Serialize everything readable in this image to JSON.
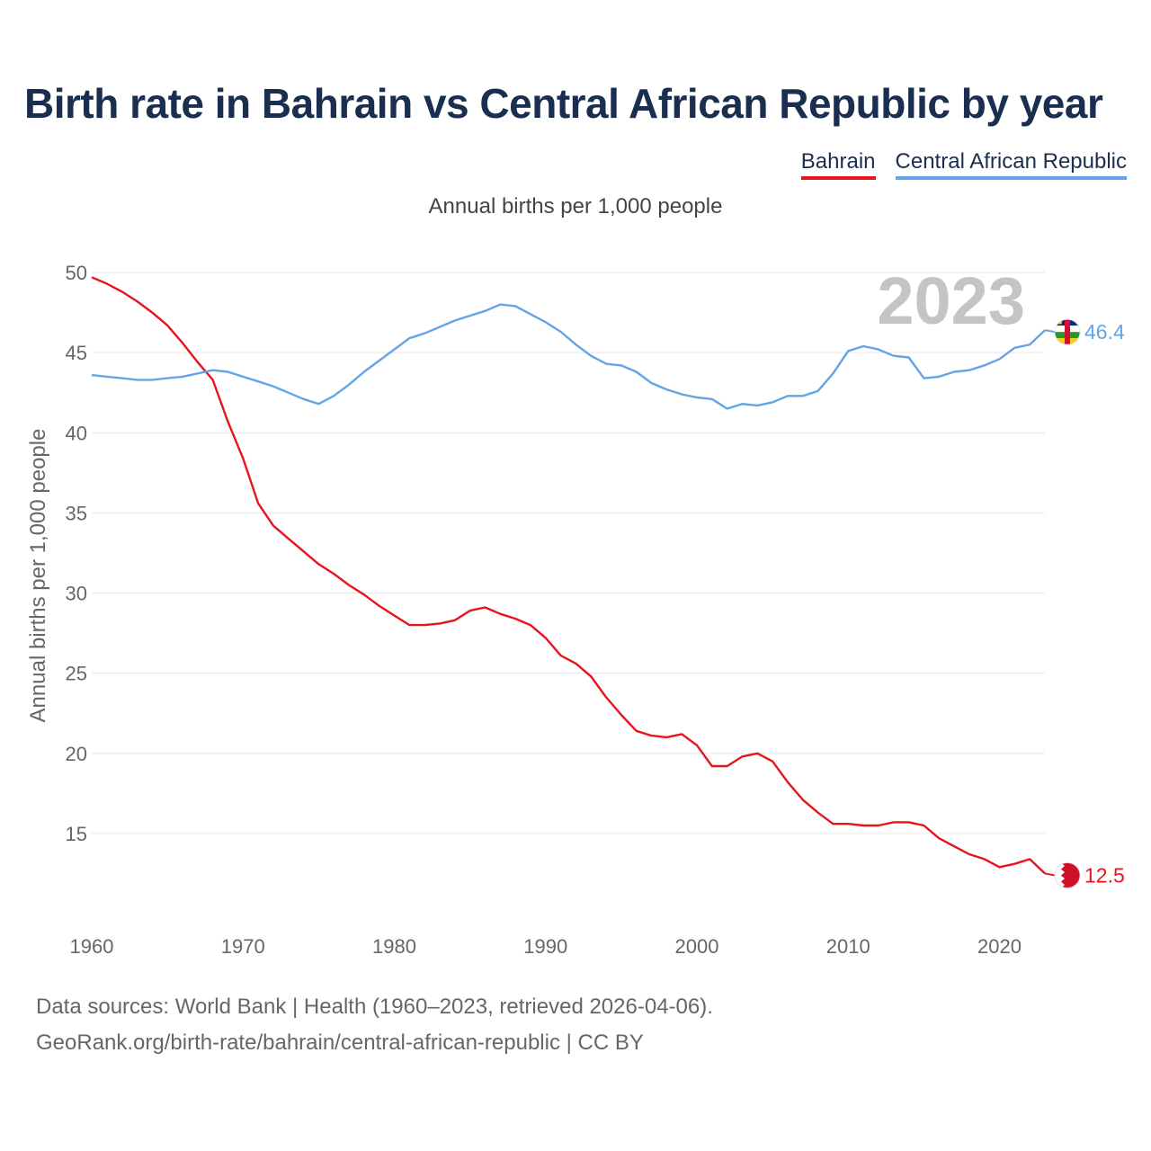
{
  "title": "Birth rate in Bahrain vs Central African Republic by year",
  "legend": [
    {
      "name": "Bahrain",
      "color": "#e8141c"
    },
    {
      "name": "Central African Republic",
      "color": "#62a5e4"
    }
  ],
  "chart_data": {
    "type": "line",
    "title": "Birth rate in Bahrain vs Central African Republic by year",
    "subtitle": "Annual births per 1,000 people",
    "xlabel": "",
    "ylabel": "Annual births per 1,000 people",
    "xlim": [
      1960,
      2023
    ],
    "ylim": [
      10,
      50
    ],
    "yticks": [
      15,
      20,
      25,
      30,
      35,
      40,
      45,
      50
    ],
    "xticks": [
      1960,
      1970,
      1980,
      1990,
      2000,
      2010,
      2020
    ],
    "grid": true,
    "current_year": "2023",
    "x": [
      1960,
      1961,
      1962,
      1963,
      1964,
      1965,
      1966,
      1967,
      1968,
      1969,
      1970,
      1971,
      1972,
      1973,
      1974,
      1975,
      1976,
      1977,
      1978,
      1979,
      1980,
      1981,
      1982,
      1983,
      1984,
      1985,
      1986,
      1987,
      1988,
      1989,
      1990,
      1991,
      1992,
      1993,
      1994,
      1995,
      1996,
      1997,
      1998,
      1999,
      2000,
      2001,
      2002,
      2003,
      2004,
      2005,
      2006,
      2007,
      2008,
      2009,
      2010,
      2011,
      2012,
      2013,
      2014,
      2015,
      2016,
      2017,
      2018,
      2019,
      2020,
      2021,
      2022,
      2023
    ],
    "series": [
      {
        "name": "Bahrain",
        "color": "#e8141c",
        "end_label": "12.5",
        "flag": "bahrain-flag-icon",
        "values": [
          49.7,
          49.3,
          48.8,
          48.2,
          47.5,
          46.7,
          45.6,
          44.4,
          43.3,
          40.7,
          38.4,
          35.6,
          34.2,
          33.4,
          32.6,
          31.8,
          31.2,
          30.5,
          29.9,
          29.2,
          28.6,
          28.0,
          28.0,
          28.1,
          28.3,
          28.9,
          29.1,
          28.7,
          28.4,
          28.0,
          27.2,
          26.1,
          25.6,
          24.8,
          23.5,
          22.4,
          21.4,
          21.1,
          21.0,
          21.2,
          20.5,
          19.2,
          19.2,
          19.8,
          20.0,
          19.5,
          18.2,
          17.1,
          16.3,
          15.6,
          15.6,
          15.5,
          15.5,
          15.7,
          15.7,
          15.5,
          14.7,
          14.2,
          13.7,
          13.4,
          12.9,
          13.1,
          13.4,
          12.5
        ]
      },
      {
        "name": "Central African Republic",
        "color": "#62a5e4",
        "end_label": "46.4",
        "flag": "central-african-republic-flag-icon",
        "values": [
          43.6,
          43.5,
          43.4,
          43.3,
          43.3,
          43.4,
          43.5,
          43.7,
          43.9,
          43.8,
          43.5,
          43.2,
          42.9,
          42.5,
          42.1,
          41.8,
          42.3,
          43.0,
          43.8,
          44.5,
          45.2,
          45.9,
          46.2,
          46.6,
          47.0,
          47.3,
          47.6,
          48.0,
          47.9,
          47.4,
          46.9,
          46.3,
          45.5,
          44.8,
          44.3,
          44.2,
          43.8,
          43.1,
          42.7,
          42.4,
          42.2,
          42.1,
          41.5,
          41.8,
          41.7,
          41.9,
          42.3,
          42.3,
          42.6,
          43.7,
          45.1,
          45.4,
          45.2,
          44.8,
          44.7,
          43.4,
          43.5,
          43.8,
          43.9,
          44.2,
          44.6,
          45.3,
          45.5,
          46.4
        ]
      }
    ]
  },
  "footer": {
    "line1": "Data sources: World Bank | Health (1960–2023, retrieved 2026-04-06).",
    "line2": "GeoRank.org/birth-rate/bahrain/central-african-republic | CC BY"
  }
}
